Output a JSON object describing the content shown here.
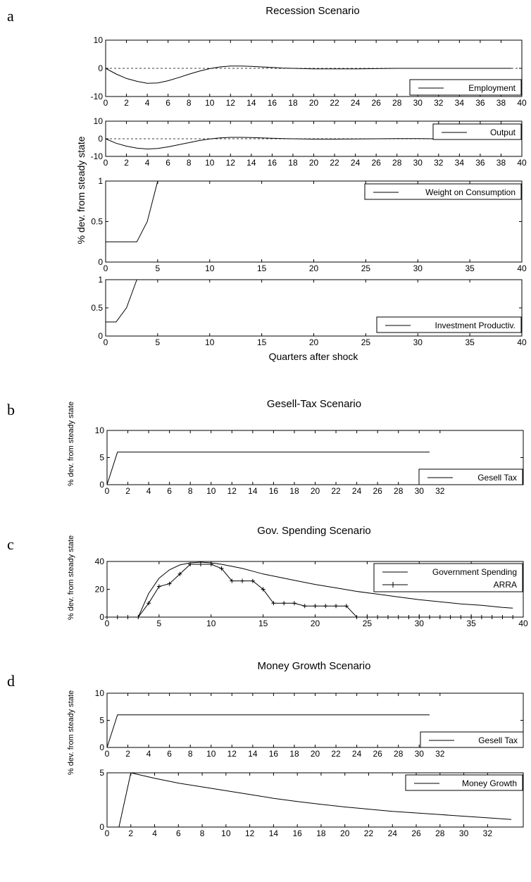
{
  "panels": {
    "a": {
      "letter": "a",
      "title": "Recession Scenario",
      "ylabel": "% dev. from steady state",
      "xlabel": "Quarters after shock"
    },
    "b": {
      "letter": "b",
      "title": "Gesell-Tax Scenario",
      "ylabel": "% dev. from steady state"
    },
    "c": {
      "letter": "c",
      "title": "Gov. Spending Scenario",
      "ylabel": "% dev. from steady state"
    },
    "d": {
      "letter": "d",
      "title": "Money Growth Scenario",
      "ylabel": "% dev. from steady state"
    }
  },
  "chart_data": [
    {
      "id": "a1",
      "panel": "a",
      "type": "line",
      "xlim": [
        0,
        40
      ],
      "ylim": [
        -10,
        10
      ],
      "xticks": [
        0,
        2,
        4,
        6,
        8,
        10,
        12,
        14,
        16,
        18,
        20,
        22,
        24,
        26,
        28,
        30,
        32,
        34,
        36,
        38,
        40
      ],
      "yticks": [
        -10,
        0,
        10
      ],
      "legend": "bottom-right",
      "zero_line": "dashed",
      "series": [
        {
          "name": "Employment",
          "style": "solid",
          "x": [
            0,
            1,
            2,
            3,
            4,
            5,
            6,
            7,
            8,
            9,
            10,
            11,
            12,
            13,
            14,
            15,
            16,
            17,
            18,
            19,
            20,
            22,
            24,
            26,
            28,
            30,
            32,
            34,
            36,
            38,
            39
          ],
          "y": [
            0,
            -2,
            -3.6,
            -4.6,
            -5.3,
            -5.2,
            -4.4,
            -3.3,
            -2.1,
            -1,
            -0.1,
            0.5,
            0.8,
            0.8,
            0.7,
            0.5,
            0.3,
            0.1,
            0,
            -0.1,
            -0.2,
            -0.2,
            -0.2,
            -0.1,
            0,
            0,
            0,
            0,
            0,
            0,
            0
          ]
        }
      ]
    },
    {
      "id": "a2",
      "panel": "a",
      "type": "line",
      "xlim": [
        0,
        40
      ],
      "ylim": [
        -10,
        10
      ],
      "xticks": [
        0,
        2,
        4,
        6,
        8,
        10,
        12,
        14,
        16,
        18,
        20,
        22,
        24,
        26,
        28,
        30,
        32,
        34,
        36,
        38,
        40
      ],
      "yticks": [
        -10,
        0,
        10
      ],
      "legend": "top-right",
      "zero_line": "dashed",
      "series": [
        {
          "name": "Output",
          "style": "solid",
          "x": [
            0,
            1,
            2,
            3,
            4,
            5,
            6,
            7,
            8,
            9,
            10,
            11,
            12,
            13,
            14,
            15,
            16,
            17,
            18,
            19,
            20,
            22,
            24,
            26,
            28,
            30,
            32,
            34,
            36,
            38,
            39
          ],
          "y": [
            0,
            -2.5,
            -4.2,
            -5.3,
            -5.8,
            -5.5,
            -4.6,
            -3.4,
            -2.2,
            -1,
            -0.1,
            0.5,
            0.8,
            0.8,
            0.7,
            0.5,
            0.3,
            0.1,
            0,
            -0.1,
            -0.2,
            -0.2,
            -0.1,
            0,
            0.1,
            0.1,
            0,
            0,
            0,
            0,
            0
          ]
        }
      ]
    },
    {
      "id": "a3",
      "panel": "a",
      "type": "line",
      "xlim": [
        0,
        40
      ],
      "ylim": [
        0,
        1
      ],
      "xticks": [
        0,
        5,
        10,
        15,
        20,
        25,
        30,
        35,
        40
      ],
      "yticks": [
        0,
        0.5,
        1
      ],
      "legend": "top-right",
      "series": [
        {
          "name": "Weight on Consumption",
          "style": "solid",
          "x": [
            0,
            1,
            2,
            3,
            4,
            5
          ],
          "y": [
            0.25,
            0.25,
            0.25,
            0.25,
            0.5,
            1
          ]
        }
      ]
    },
    {
      "id": "a4",
      "panel": "a",
      "type": "line",
      "xlim": [
        0,
        40
      ],
      "ylim": [
        0,
        1
      ],
      "xticks": [
        0,
        5,
        10,
        15,
        20,
        25,
        30,
        35,
        40
      ],
      "yticks": [
        0,
        0.5,
        1
      ],
      "legend": "bottom-right",
      "series": [
        {
          "name": "Investment Productiv.",
          "style": "solid",
          "x": [
            0,
            1,
            2,
            3
          ],
          "y": [
            0.25,
            0.25,
            0.5,
            1
          ]
        }
      ]
    },
    {
      "id": "b1",
      "panel": "b",
      "type": "line",
      "xlim": [
        0,
        40
      ],
      "ylim": [
        0,
        10
      ],
      "xticks": [
        0,
        2,
        4,
        6,
        8,
        10,
        12,
        14,
        16,
        18,
        20,
        22,
        24,
        26,
        28,
        30,
        32
      ],
      "yticks": [
        0,
        5,
        10
      ],
      "legend": "bottom-right",
      "series": [
        {
          "name": "Gesell Tax",
          "style": "solid",
          "x": [
            0,
            1,
            31
          ],
          "y": [
            0,
            6,
            6
          ]
        }
      ]
    },
    {
      "id": "c1",
      "panel": "c",
      "type": "line",
      "xlim": [
        0,
        40
      ],
      "ylim": [
        0,
        40
      ],
      "xticks": [
        0,
        5,
        10,
        15,
        20,
        25,
        30,
        35,
        40
      ],
      "yticks": [
        0,
        20,
        40
      ],
      "legend": "top-right",
      "series": [
        {
          "name": "Government Spending",
          "style": "solid",
          "x": [
            0,
            1,
            2,
            3,
            4,
            5,
            6,
            7,
            8,
            9,
            10,
            11,
            12,
            13,
            14,
            15,
            16,
            18,
            20,
            22,
            24,
            26,
            28,
            30,
            32,
            34,
            36,
            38,
            39
          ],
          "y": [
            0,
            0,
            0,
            0,
            17,
            28,
            34,
            37.5,
            39,
            39.5,
            39,
            38,
            36.5,
            35,
            33,
            31,
            29.5,
            26.5,
            23.5,
            21,
            18.5,
            16.5,
            14.5,
            12.5,
            11,
            9.5,
            8.5,
            7,
            6.5
          ]
        },
        {
          "name": "ARRA",
          "style": "plus-markers",
          "x": [
            0,
            1,
            2,
            3,
            4,
            5,
            6,
            7,
            8,
            9,
            10,
            11,
            12,
            13,
            14,
            15,
            16,
            17,
            18,
            19,
            20,
            21,
            22,
            23,
            24,
            25,
            26,
            27,
            28,
            29,
            30,
            31,
            32,
            33,
            34,
            35,
            36,
            37,
            38,
            39
          ],
          "y": [
            0,
            0,
            0,
            0,
            10,
            22,
            24,
            31,
            38,
            38,
            38,
            35,
            26,
            26,
            26,
            20,
            10,
            10,
            10,
            8,
            8,
            8,
            8,
            8,
            0,
            0,
            0,
            0,
            0,
            0,
            0,
            0,
            0,
            0,
            0,
            0,
            0,
            0,
            0,
            0
          ]
        }
      ]
    },
    {
      "id": "d1",
      "panel": "d",
      "type": "line",
      "xlim": [
        0,
        40
      ],
      "ylim": [
        0,
        10
      ],
      "xticks": [
        0,
        2,
        4,
        6,
        8,
        10,
        12,
        14,
        16,
        18,
        20,
        22,
        24,
        26,
        28,
        30,
        32
      ],
      "yticks": [
        0,
        5,
        10
      ],
      "legend": "bottom-right",
      "series": [
        {
          "name": "Gesell Tax",
          "style": "solid",
          "x": [
            0,
            1,
            31
          ],
          "y": [
            0,
            6,
            6
          ]
        }
      ]
    },
    {
      "id": "d2",
      "panel": "d",
      "type": "line",
      "xlim": [
        0,
        35
      ],
      "ylim": [
        0,
        5
      ],
      "xticks": [
        0,
        2,
        4,
        6,
        8,
        10,
        12,
        14,
        16,
        18,
        20,
        22,
        24,
        26,
        28,
        30,
        32
      ],
      "yticks": [
        0,
        5
      ],
      "legend": "top-right",
      "series": [
        {
          "name": "Money Growth",
          "style": "solid",
          "x": [
            1,
            2,
            4,
            6,
            8,
            10,
            12,
            14,
            16,
            18,
            20,
            22,
            24,
            26,
            28,
            30,
            32,
            34
          ],
          "y": [
            0,
            5,
            4.5,
            4.05,
            3.7,
            3.35,
            3.0,
            2.65,
            2.35,
            2.1,
            1.85,
            1.65,
            1.45,
            1.3,
            1.15,
            1.0,
            0.85,
            0.7
          ]
        }
      ]
    }
  ]
}
